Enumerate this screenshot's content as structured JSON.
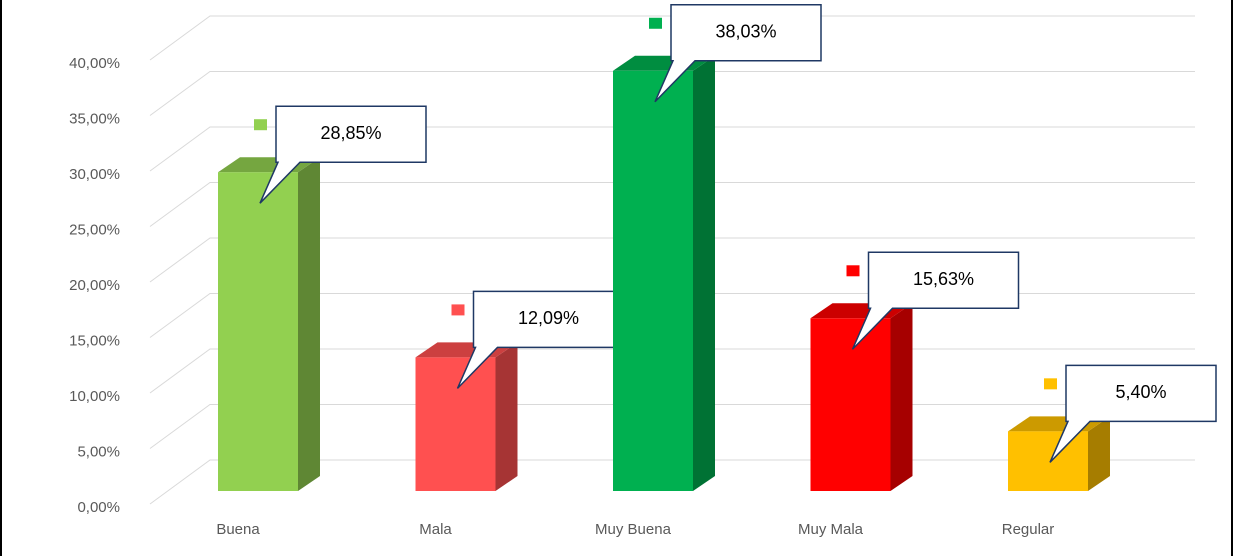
{
  "chart_data": {
    "type": "bar3d",
    "categories": [
      "Buena",
      "Mala",
      "Muy Buena",
      "Muy Mala",
      "Regular"
    ],
    "values": [
      28.85,
      12.09,
      38.03,
      15.63,
      5.4
    ],
    "value_labels": [
      "28,85%",
      "12,09%",
      "38,03%",
      "15,63%",
      "5,40%"
    ],
    "colors": [
      "#92d050",
      "#ff5050",
      "#00b050",
      "#ff0000",
      "#ffc000"
    ],
    "ylim": [
      0,
      40
    ],
    "yticks": [
      {
        "value": 0,
        "label": "0,00%"
      },
      {
        "value": 5,
        "label": "5,00%"
      },
      {
        "value": 10,
        "label": "10,00%"
      },
      {
        "value": 15,
        "label": "15,00%"
      },
      {
        "value": 20,
        "label": "20,00%"
      },
      {
        "value": 25,
        "label": "25,00%"
      },
      {
        "value": 30,
        "label": "30,00%"
      },
      {
        "value": 35,
        "label": "35,00%"
      },
      {
        "value": 40,
        "label": "40,00%"
      }
    ],
    "grid": true
  }
}
